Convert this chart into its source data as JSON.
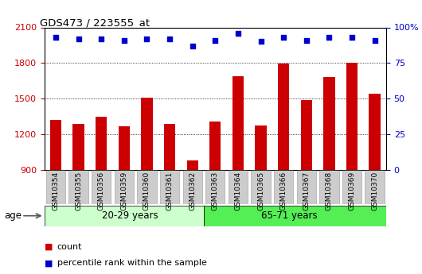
{
  "title": "GDS473 / 223555_at",
  "samples": [
    "GSM10354",
    "GSM10355",
    "GSM10356",
    "GSM10359",
    "GSM10360",
    "GSM10361",
    "GSM10362",
    "GSM10363",
    "GSM10364",
    "GSM10365",
    "GSM10366",
    "GSM10367",
    "GSM10368",
    "GSM10369",
    "GSM10370"
  ],
  "counts": [
    1320,
    1285,
    1345,
    1268,
    1510,
    1285,
    978,
    1310,
    1690,
    1275,
    1795,
    1490,
    1685,
    1800,
    1540
  ],
  "percentile_ranks": [
    93,
    92,
    92,
    91,
    92,
    92,
    87,
    91,
    96,
    90,
    93,
    91,
    93,
    93,
    91
  ],
  "group1_label": "20-29 years",
  "group2_label": "65-71 years",
  "group1_count": 7,
  "group2_count": 8,
  "ylim_left": [
    900,
    2100
  ],
  "yticks_left": [
    900,
    1200,
    1500,
    1800,
    2100
  ],
  "ylim_right": [
    0,
    100
  ],
  "yticks_right": [
    0,
    25,
    50,
    75,
    100
  ],
  "bar_color": "#cc0000",
  "dot_color": "#0000cc",
  "group1_bg": "#ccffcc",
  "group2_bg": "#55ee55",
  "xticklabel_bg": "#cccccc",
  "legend_red_label": "count",
  "legend_blue_label": "percentile rank within the sample",
  "age_label": "age"
}
